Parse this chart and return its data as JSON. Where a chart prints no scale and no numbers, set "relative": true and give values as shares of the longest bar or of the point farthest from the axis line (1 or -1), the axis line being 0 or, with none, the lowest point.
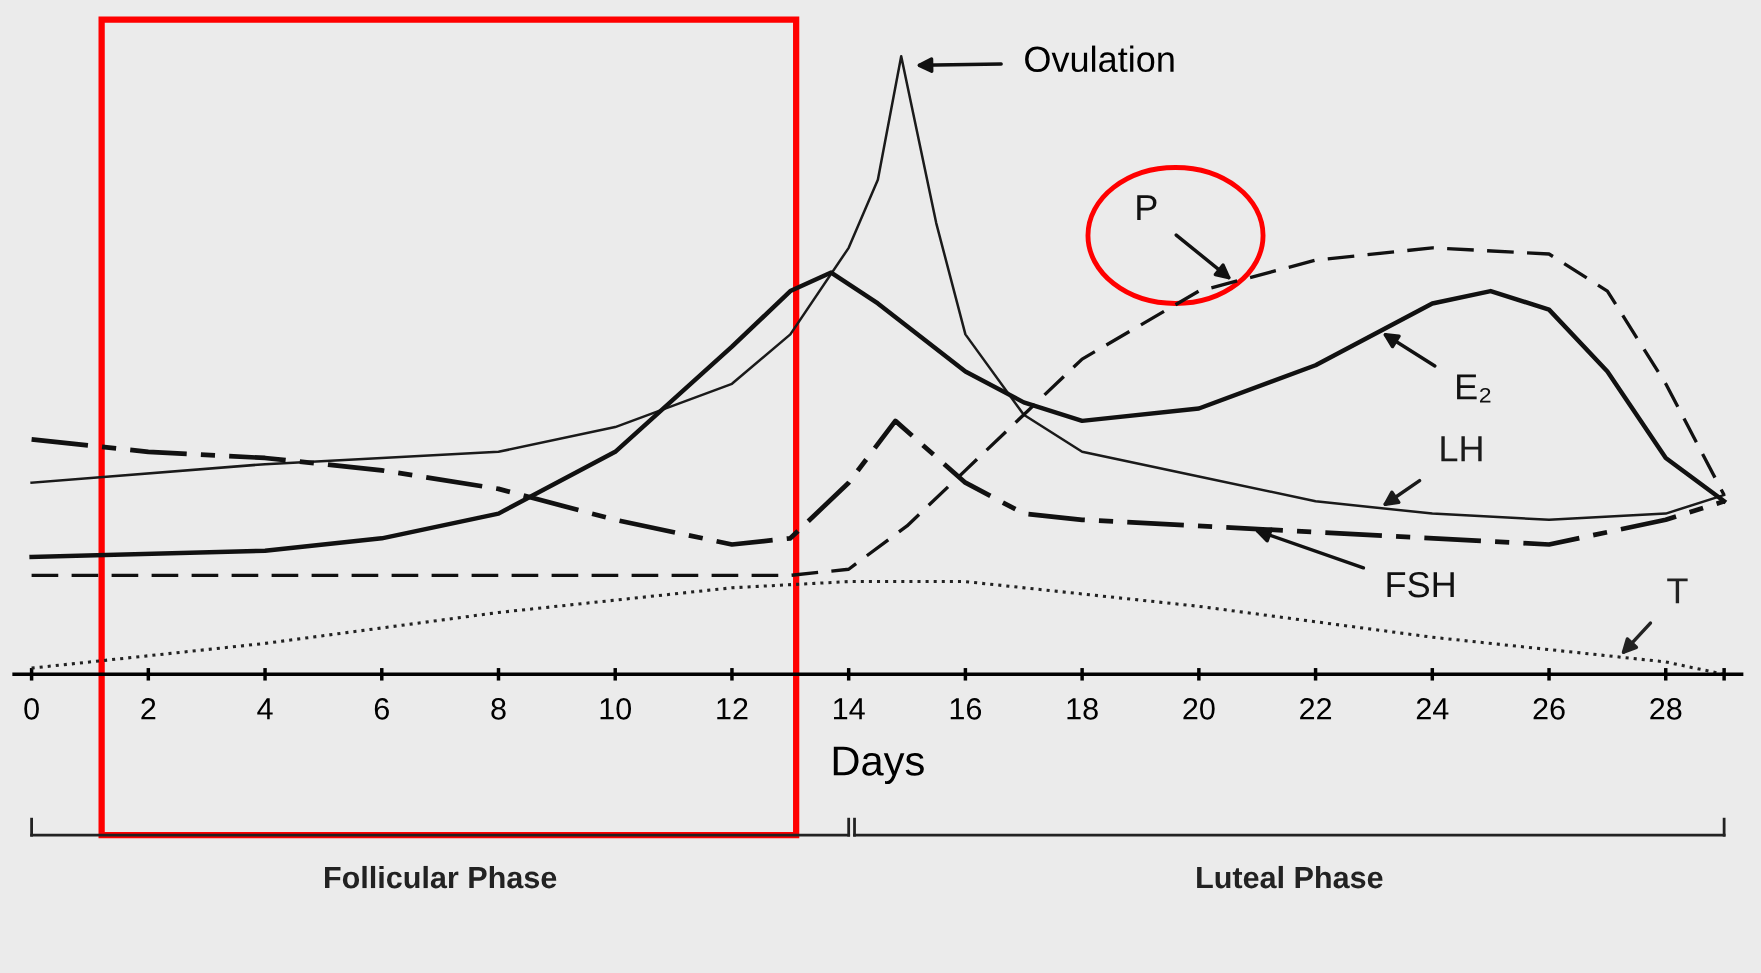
{
  "chart_data": {
    "type": "line",
    "relative": true,
    "xlabel": "Days",
    "xlim": [
      -0.3,
      29.3
    ],
    "xticks": [
      0,
      2,
      4,
      6,
      8,
      10,
      12,
      14,
      16,
      18,
      20,
      22,
      24,
      26,
      28,
      {
        "value": 29,
        "label": null
      }
    ],
    "tick_labels": "x",
    "grid": false,
    "legend": false,
    "marker": "none",
    "series": [
      {
        "name": "LH",
        "color": "#1a1a1a",
        "line_style": "solid",
        "x": [
          0,
          4,
          8,
          10,
          12,
          13,
          14,
          14.5,
          14.9,
          15.5,
          16,
          17,
          18,
          20,
          22,
          24,
          26,
          28,
          29
        ],
        "values": [
          0.31,
          0.34,
          0.36,
          0.4,
          0.47,
          0.55,
          0.69,
          0.8,
          1.0,
          0.73,
          0.55,
          0.42,
          0.36,
          0.32,
          0.28,
          0.26,
          0.25,
          0.26,
          0.29
        ]
      },
      {
        "name": "E₂",
        "color": "#111111",
        "line_style": "solid",
        "x": [
          0,
          4,
          6,
          8,
          10,
          12,
          13,
          13.7,
          14.5,
          16,
          17,
          18,
          20,
          22,
          24,
          25,
          26,
          27,
          28,
          29
        ],
        "values": [
          0.19,
          0.2,
          0.22,
          0.26,
          0.36,
          0.53,
          0.62,
          0.65,
          0.6,
          0.49,
          0.44,
          0.41,
          0.43,
          0.5,
          0.6,
          0.62,
          0.59,
          0.49,
          0.35,
          0.28
        ]
      },
      {
        "name": "FSH",
        "color": "#111111",
        "line_style": "dashed",
        "x": [
          0,
          2,
          4,
          6,
          8,
          10,
          12,
          13,
          14,
          14.8,
          16,
          17,
          18,
          22,
          26,
          28,
          29
        ],
        "values": [
          0.38,
          0.36,
          0.35,
          0.33,
          0.3,
          0.25,
          0.21,
          0.22,
          0.31,
          0.41,
          0.31,
          0.26,
          0.25,
          0.23,
          0.21,
          0.25,
          0.28
        ]
      },
      {
        "name": "P",
        "color": "#111111",
        "line_style": "dashed",
        "x": [
          0,
          13,
          14,
          15,
          16,
          17,
          18,
          20,
          22,
          24,
          26,
          27,
          28,
          29
        ],
        "values": [
          0.16,
          0.16,
          0.17,
          0.24,
          0.33,
          0.42,
          0.51,
          0.62,
          0.67,
          0.69,
          0.68,
          0.62,
          0.47,
          0.29
        ]
      },
      {
        "name": "T",
        "color": "#222222",
        "line_style": "dotted",
        "x": [
          0,
          4,
          8,
          12,
          14,
          16,
          20,
          24,
          28,
          29
        ],
        "values": [
          0.01,
          0.05,
          0.1,
          0.14,
          0.15,
          0.15,
          0.11,
          0.06,
          0.02,
          0.0
        ]
      }
    ],
    "annotations": [
      "Ovulation",
      "Follicular Phase",
      "Luteal Phase"
    ]
  }
}
